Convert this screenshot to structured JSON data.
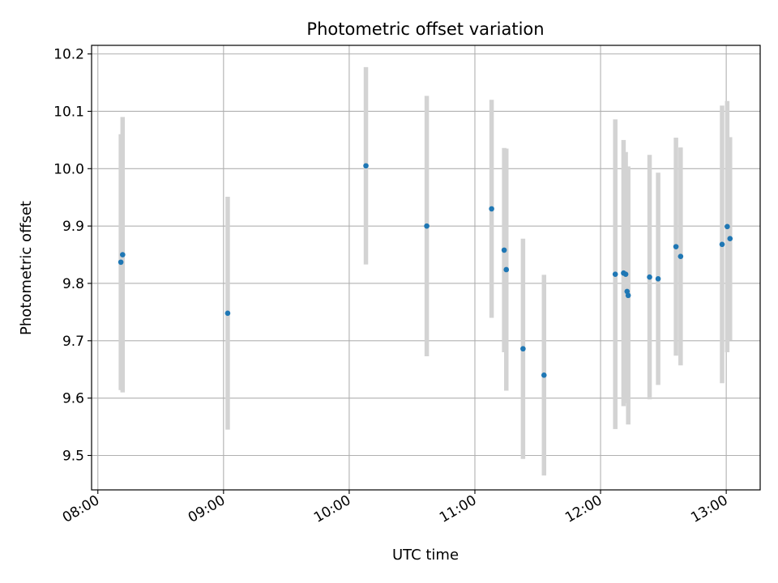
{
  "chart_data": {
    "type": "scatter",
    "title": "Photometric offset variation",
    "xlabel": "UTC time",
    "ylabel": "Photometric offset",
    "x_unit": "hours UTC",
    "xlim": [
      7.95,
      13.27
    ],
    "ylim": [
      9.44,
      10.215
    ],
    "grid": true,
    "x_ticks": [
      {
        "value": 8,
        "label": "08:00"
      },
      {
        "value": 9,
        "label": "09:00"
      },
      {
        "value": 10,
        "label": "10:00"
      },
      {
        "value": 11,
        "label": "11:00"
      },
      {
        "value": 12,
        "label": "12:00"
      },
      {
        "value": 13,
        "label": "13:00"
      }
    ],
    "y_ticks": [
      {
        "value": 9.5,
        "label": "9.5"
      },
      {
        "value": 9.6,
        "label": "9.6"
      },
      {
        "value": 9.7,
        "label": "9.7"
      },
      {
        "value": 9.8,
        "label": "9.8"
      },
      {
        "value": 9.9,
        "label": "9.9"
      },
      {
        "value": 10.0,
        "label": "10.0"
      },
      {
        "value": 10.1,
        "label": "10.1"
      },
      {
        "value": 10.2,
        "label": "10.2"
      }
    ],
    "series": [
      {
        "name": "offset",
        "marker_color": "#1f77b4",
        "errorbar_color": "#d3d3d3",
        "points": [
          {
            "x": 8.183,
            "y": 9.837,
            "err": 0.223
          },
          {
            "x": 8.197,
            "y": 9.85,
            "err": 0.24
          },
          {
            "x": 9.033,
            "y": 9.748,
            "err": 0.203
          },
          {
            "x": 10.133,
            "y": 10.005,
            "err": 0.172
          },
          {
            "x": 10.617,
            "y": 9.9,
            "err": 0.227
          },
          {
            "x": 11.133,
            "y": 9.93,
            "err": 0.19
          },
          {
            "x": 11.233,
            "y": 9.858,
            "err": 0.178
          },
          {
            "x": 11.25,
            "y": 9.824,
            "err": 0.211
          },
          {
            "x": 11.383,
            "y": 9.686,
            "err": 0.192
          },
          {
            "x": 11.55,
            "y": 9.64,
            "err": 0.175
          },
          {
            "x": 12.117,
            "y": 9.816,
            "err": 0.27
          },
          {
            "x": 12.183,
            "y": 9.818,
            "err": 0.232
          },
          {
            "x": 12.2,
            "y": 9.816,
            "err": 0.213
          },
          {
            "x": 12.211,
            "y": 9.786,
            "err": 0.195
          },
          {
            "x": 12.22,
            "y": 9.779,
            "err": 0.225
          },
          {
            "x": 12.39,
            "y": 9.811,
            "err": 0.213
          },
          {
            "x": 12.458,
            "y": 9.808,
            "err": 0.185
          },
          {
            "x": 12.6,
            "y": 9.864,
            "err": 0.19
          },
          {
            "x": 12.637,
            "y": 9.847,
            "err": 0.19
          },
          {
            "x": 12.967,
            "y": 9.868,
            "err": 0.242
          },
          {
            "x": 13.008,
            "y": 9.899,
            "err": 0.219
          },
          {
            "x": 13.03,
            "y": 9.878,
            "err": 0.177
          }
        ]
      }
    ]
  }
}
